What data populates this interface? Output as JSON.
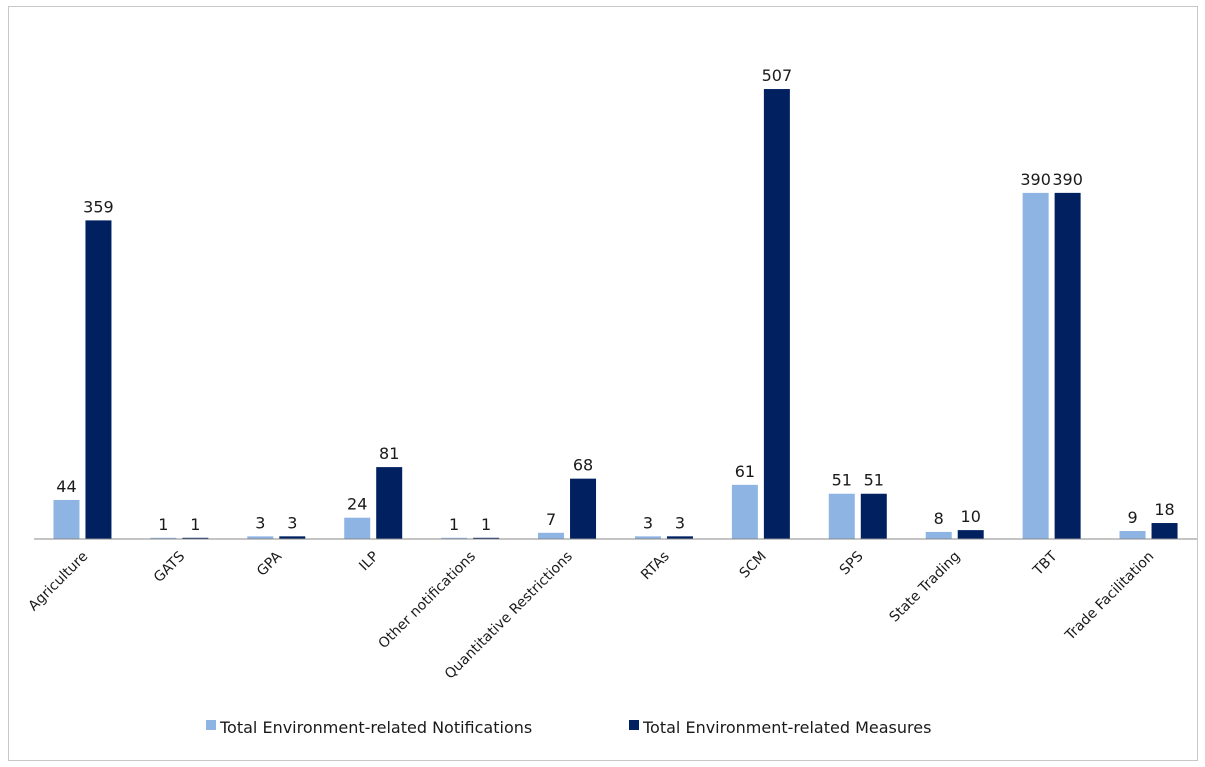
{
  "chart_data": {
    "type": "bar",
    "title": "",
    "xlabel": "",
    "ylabel": "",
    "ylim": [
      0,
      520
    ],
    "grid": false,
    "legend_position": "bottom",
    "categories": [
      "Agriculture",
      "GATS",
      "GPA",
      "ILP",
      "Other notifications",
      "Quantitative Restrictions",
      "RTAs",
      "SCM",
      "SPS",
      "State Trading",
      "TBT",
      "Trade Facilitation"
    ],
    "series": [
      {
        "name": "Total Environment-related Notifications",
        "color": "#8eb4e3",
        "values": [
          44,
          1,
          3,
          24,
          1,
          7,
          3,
          61,
          51,
          8,
          390,
          9
        ]
      },
      {
        "name": "Total Environment-related Measures",
        "color": "#002060",
        "values": [
          359,
          1,
          3,
          81,
          1,
          68,
          3,
          507,
          51,
          10,
          390,
          18
        ]
      }
    ]
  }
}
